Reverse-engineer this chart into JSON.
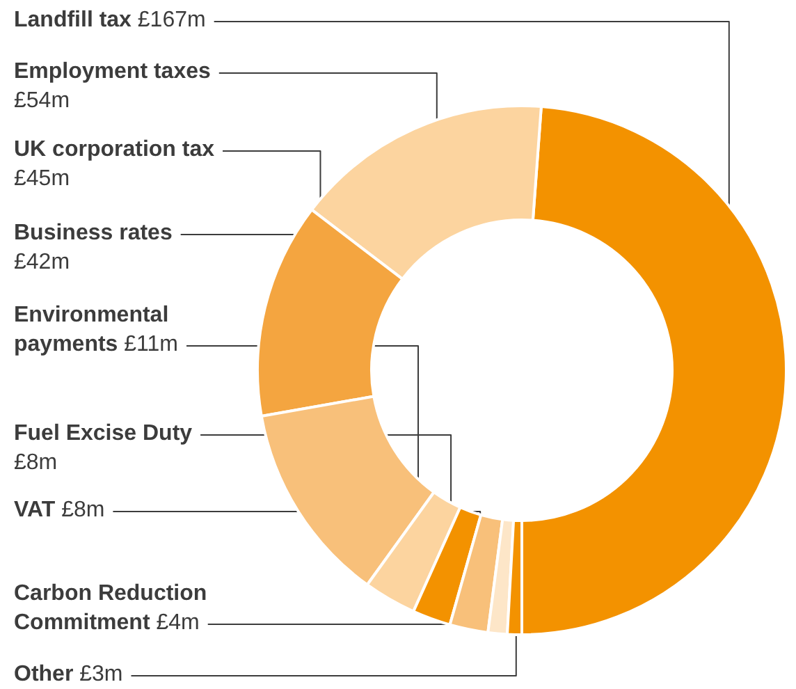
{
  "chart_data": {
    "type": "donut",
    "categories": [
      "Landfill tax",
      "Employment taxes",
      "UK corporation tax",
      "Business rates",
      "Environmental payments",
      "Fuel Excise Duty",
      "VAT",
      "Carbon Reduction Commitment",
      "Other"
    ],
    "values": [
      167,
      54,
      45,
      42,
      11,
      8,
      8,
      4,
      3
    ],
    "value_labels": [
      "£167m",
      "£54m",
      "£45m",
      "£42m",
      "£11m",
      "£8m",
      "£8m",
      "£4m",
      "£3m"
    ],
    "colors": [
      "#f39200",
      "#fcd49f",
      "#f4a540",
      "#f8c07a",
      "#fcd49f",
      "#f39200",
      "#f8c07a",
      "#fde6c8",
      "#f39200"
    ],
    "legend": false
  }
}
